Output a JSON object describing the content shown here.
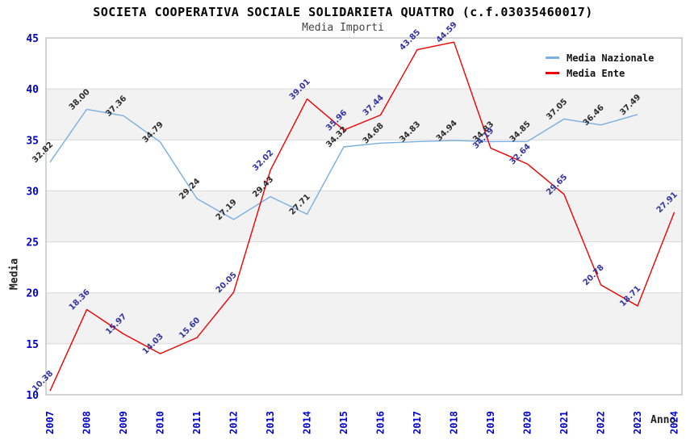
{
  "header": {
    "title": "SOCIETA COOPERATIVA SOCIALE SOLIDARIETA QUATTRO (c.f.03035460017)",
    "subtitle": "Media Importi"
  },
  "axes": {
    "y_label": "Media",
    "x_label": "Anno"
  },
  "legend": [
    {
      "label": "Media Nazionale",
      "color": "#79AFE1"
    },
    {
      "label": "Media Ente",
      "color": "#EF0000"
    }
  ],
  "colors": {
    "axis_tick": "#0000CC",
    "plot_band": "#F2F2F2",
    "grid_line": "#D9D9D9",
    "plot_border": "#AAAAAA",
    "nazionale_line": "#79AFE1",
    "nazionale_label": "#2B2B2B",
    "ente_line": "#EF0000",
    "ente_label": "#3333A2"
  },
  "chart_data": {
    "type": "line",
    "title": "SOCIETA COOPERATIVA SOCIALE SOLIDARIETA QUATTRO (c.f.03035460017)",
    "subtitle": "Media Importi",
    "xlabel": "Anno",
    "ylabel": "Media",
    "ylim": [
      10,
      45
    ],
    "ytick_step": 5,
    "grid": true,
    "legend_position": "top-right",
    "plot_bands": [
      [
        35,
        40
      ],
      [
        25,
        30
      ],
      [
        15,
        20
      ]
    ],
    "categories": [
      "2007",
      "2008",
      "2009",
      "2010",
      "2011",
      "2012",
      "2013",
      "2014",
      "2015",
      "2016",
      "2017",
      "2018",
      "2019",
      "2020",
      "2021",
      "2022",
      "2023",
      "2024"
    ],
    "series": [
      {
        "name": "Media Nazionale",
        "color": "#79AFE1",
        "label_color": "#2B2B2B",
        "values": [
          32.82,
          38.0,
          37.36,
          34.79,
          29.24,
          27.19,
          29.43,
          27.71,
          34.32,
          34.68,
          34.83,
          34.94,
          34.83,
          34.85,
          37.05,
          36.46,
          37.49,
          null
        ]
      },
      {
        "name": "Media Ente",
        "color": "#EF0000",
        "label_color": "#3333A2",
        "values": [
          10.38,
          18.36,
          15.97,
          14.03,
          15.6,
          20.05,
          32.02,
          39.01,
          35.96,
          37.44,
          43.85,
          44.59,
          34.19,
          32.64,
          29.65,
          20.78,
          18.71,
          27.91
        ]
      }
    ]
  }
}
